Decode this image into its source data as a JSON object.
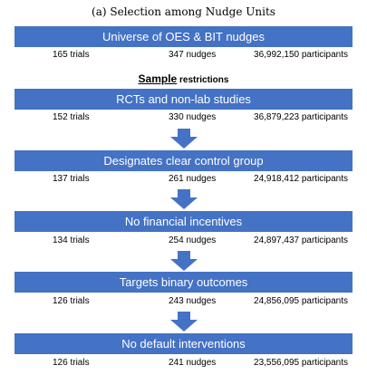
{
  "caption": "(a) Selection among Nudge Units",
  "universe": {
    "label": "Universe of OES & BIT nudges",
    "trials": "165 trials",
    "nudges": "347 nudges",
    "participants": "36,992,150 participants"
  },
  "sample_heading": {
    "bold": "Sample",
    "rest": " restrictions"
  },
  "stages": [
    {
      "label": "RCTs and non-lab studies",
      "trials": "152 trials",
      "nudges": "330 nudges",
      "participants": "36,879,223 participants"
    },
    {
      "label": "Designates clear control group",
      "trials": "137 trials",
      "nudges": "261 nudges",
      "participants": "24,918,412 participants"
    },
    {
      "label": "No financial incentives",
      "trials": "134 trials",
      "nudges": "254 nudges",
      "participants": "24,897,437 participants"
    },
    {
      "label": "Targets binary outcomes",
      "trials": "126 trials",
      "nudges": "243 nudges",
      "participants": "24,856,095 participants"
    },
    {
      "label": "No default interventions",
      "trials": "126 trials",
      "nudges": "241 nudges",
      "participants": "23,556,095 participants"
    }
  ],
  "colors": {
    "box": "#4472c4",
    "arrow": "#4472c4",
    "box_text": "#ffffff"
  }
}
